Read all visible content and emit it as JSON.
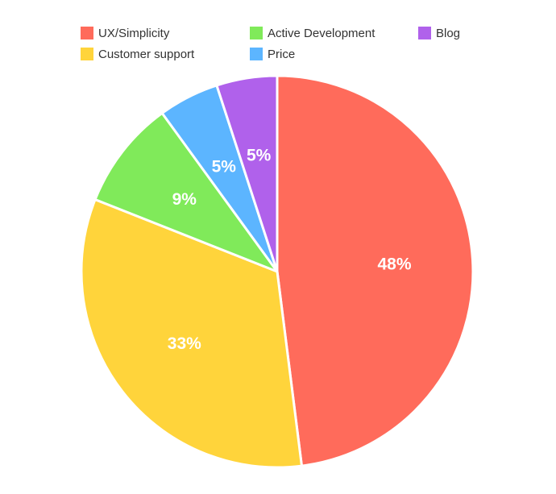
{
  "chart_data": {
    "type": "pie",
    "title": "",
    "categories": [
      "UX/Simplicity",
      "Customer support",
      "Active Development",
      "Price",
      "Blog"
    ],
    "values": [
      48,
      33,
      9,
      5,
      5
    ],
    "labels": [
      "48%",
      "33%",
      "9%",
      "5%",
      "5%"
    ],
    "colors": [
      "#ff6b5b",
      "#ffd43b",
      "#80ea5a",
      "#5cb5ff",
      "#b061eb"
    ],
    "legend_position": "top",
    "start": "12 o'clock",
    "direction": "clockwise"
  }
}
